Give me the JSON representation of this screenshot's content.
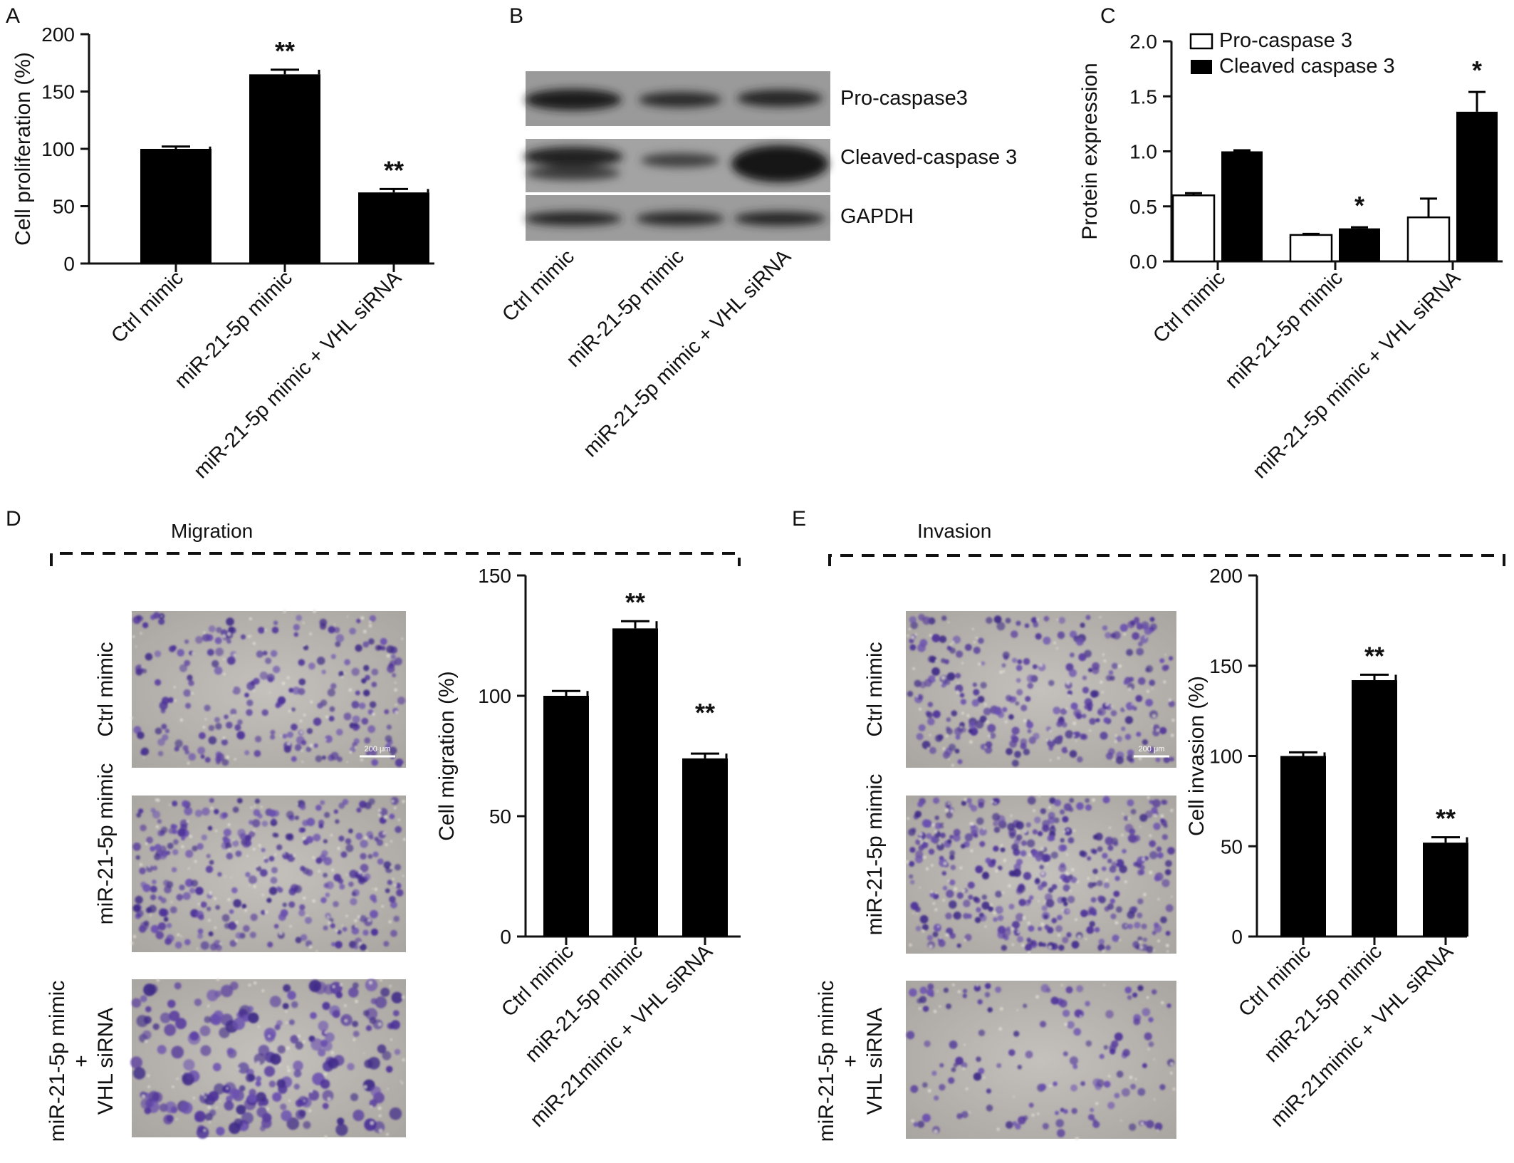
{
  "panels": {
    "A": "A",
    "B": "B",
    "C": "C",
    "D": "D",
    "E": "E"
  },
  "colors": {
    "bar": "#000000",
    "hollow_bar": "#ffffff",
    "stain": "#5b3fa0",
    "field": "#b9b6b2"
  },
  "chart_data": [
    {
      "id": "A",
      "type": "bar",
      "ylabel": "Cell proliferation (%)",
      "ylim": [
        0,
        200
      ],
      "yticks": [
        0,
        50,
        100,
        150,
        200
      ],
      "categories": [
        "Ctrl mimic",
        "miR-21-5p mimic",
        "miR-21-5p mimic + VHL siRNA"
      ],
      "values": [
        100,
        165,
        62
      ],
      "errors": [
        2,
        4,
        3
      ],
      "significance": [
        "",
        "**",
        "**"
      ]
    },
    {
      "id": "C",
      "type": "bar",
      "ylabel": "Protein expression",
      "ylim": [
        0,
        2.0
      ],
      "yticks": [
        "0.0",
        "0.5",
        "1.0",
        "1.5",
        "2.0"
      ],
      "categories": [
        "Ctrl mimic",
        "miR-21-5p mimic",
        "miR-21-5p mimic + VHL siRNA"
      ],
      "legend_position": "top-left",
      "series": [
        {
          "name": "Pro-caspase 3",
          "fill": "white",
          "values": [
            0.6,
            0.24,
            0.4
          ],
          "errors": [
            0.02,
            0.01,
            0.17
          ]
        },
        {
          "name": "Cleaved caspase 3",
          "fill": "black",
          "values": [
            1.0,
            0.3,
            1.36
          ],
          "errors": [
            0.01,
            0.01,
            0.18
          ]
        }
      ],
      "significance": [
        "",
        "*",
        "*"
      ]
    },
    {
      "id": "D",
      "type": "bar",
      "ylabel": "Cell migration (%)",
      "ylim": [
        0,
        150
      ],
      "yticks": [
        0,
        50,
        100,
        150
      ],
      "categories": [
        "Ctrl mimic",
        "miR-21-5p mimic",
        "miR-21mimic + VHL siRNA"
      ],
      "values": [
        100,
        128,
        74
      ],
      "errors": [
        2,
        3,
        2
      ],
      "significance": [
        "",
        "**",
        "**"
      ]
    },
    {
      "id": "E",
      "type": "bar",
      "ylabel": "Cell invasion (%)",
      "ylim": [
        0,
        200
      ],
      "yticks": [
        0,
        50,
        100,
        150,
        200
      ],
      "categories": [
        "Ctrl mimic",
        "miR-21-5p mimic",
        "miR-21mimic + VHL siRNA"
      ],
      "values": [
        100,
        142,
        52
      ],
      "errors": [
        2,
        3,
        3
      ],
      "significance": [
        "",
        "**",
        "**"
      ]
    }
  ],
  "blot": {
    "bands": [
      "Pro-caspase3",
      "Cleaved-caspase 3",
      "GAPDH"
    ],
    "lanes": [
      "Ctrl mimic",
      "miR-21-5p mimic",
      "miR-21-5p mimic + VHL siRNA"
    ]
  },
  "migration": {
    "title": "Migration",
    "rows": [
      "Ctrl mimic",
      "miR-21-5p mimic"
    ],
    "row3_line1": "miR-21-5p mimic",
    "row3_line2": "+",
    "row3_line3": "VHL siRNA",
    "scale_bar": "200 μm"
  },
  "invasion": {
    "title": "Invasion",
    "rows": [
      "Ctrl mimic",
      "miR-21-5p mimic"
    ],
    "row3_line1": "miR-21-5p mimic",
    "row3_line2": "+",
    "row3_line3": "VHL siRNA",
    "scale_bar": "200 μm"
  }
}
